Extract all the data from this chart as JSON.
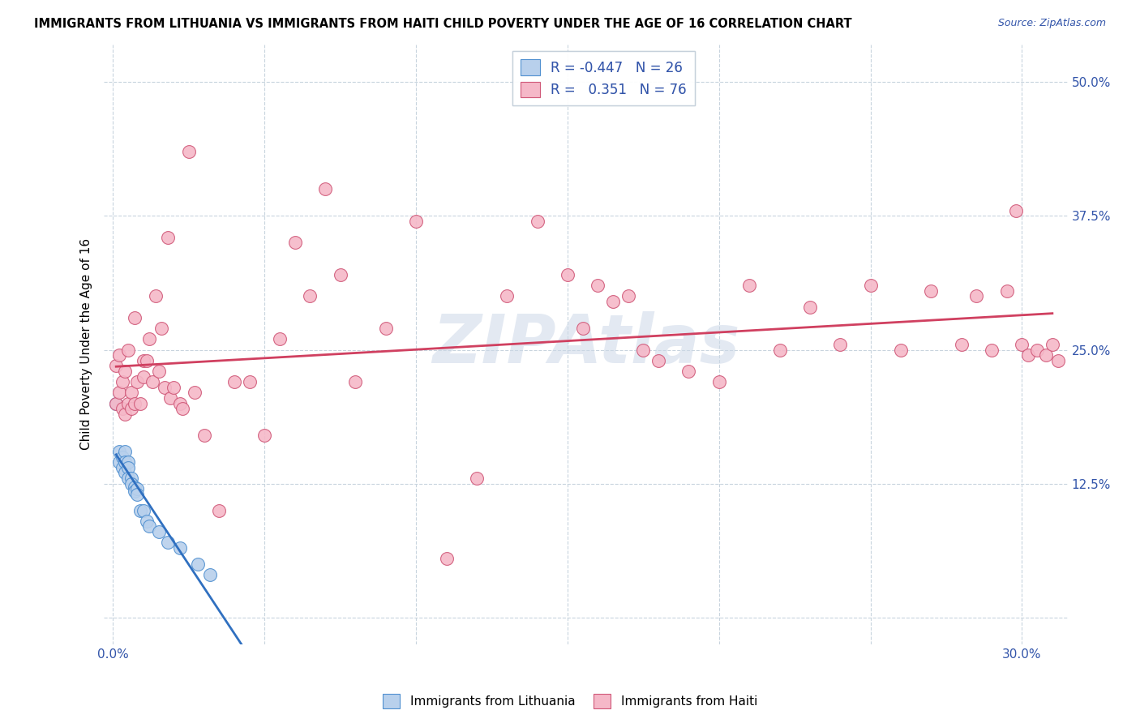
{
  "title": "IMMIGRANTS FROM LITHUANIA VS IMMIGRANTS FROM HAITI CHILD POVERTY UNDER THE AGE OF 16 CORRELATION CHART",
  "source": "Source: ZipAtlas.com",
  "ylabel": "Child Poverty Under the Age of 16",
  "xlim": [
    -0.003,
    0.315
  ],
  "ylim": [
    -0.025,
    0.535
  ],
  "xticks": [
    0.0,
    0.05,
    0.1,
    0.15,
    0.2,
    0.25,
    0.3
  ],
  "yticks": [
    0.0,
    0.125,
    0.25,
    0.375,
    0.5
  ],
  "r_lithuania": -0.447,
  "n_lithuania": 26,
  "r_haiti": 0.351,
  "n_haiti": 76,
  "color_lithuania_face": "#b8d0ec",
  "color_lithuania_edge": "#5090d0",
  "color_haiti_face": "#f5b8c8",
  "color_haiti_edge": "#d05878",
  "line_color_lithuania": "#3070c0",
  "line_color_haiti": "#d04060",
  "watermark": "ZIPAtlas",
  "watermark_color": "#ccd8e8",
  "lithuania_x": [
    0.001,
    0.002,
    0.002,
    0.003,
    0.003,
    0.004,
    0.004,
    0.004,
    0.005,
    0.005,
    0.005,
    0.006,
    0.006,
    0.007,
    0.007,
    0.008,
    0.008,
    0.009,
    0.01,
    0.011,
    0.012,
    0.015,
    0.018,
    0.022,
    0.028,
    0.032
  ],
  "lithuania_y": [
    0.2,
    0.155,
    0.145,
    0.15,
    0.14,
    0.155,
    0.145,
    0.135,
    0.145,
    0.14,
    0.13,
    0.13,
    0.125,
    0.122,
    0.118,
    0.12,
    0.115,
    0.1,
    0.1,
    0.09,
    0.085,
    0.08,
    0.07,
    0.065,
    0.05,
    0.04
  ],
  "haiti_x": [
    0.001,
    0.001,
    0.002,
    0.002,
    0.003,
    0.003,
    0.004,
    0.004,
    0.005,
    0.005,
    0.006,
    0.006,
    0.007,
    0.007,
    0.008,
    0.009,
    0.01,
    0.01,
    0.011,
    0.012,
    0.013,
    0.014,
    0.015,
    0.016,
    0.017,
    0.018,
    0.019,
    0.02,
    0.022,
    0.023,
    0.025,
    0.027,
    0.03,
    0.035,
    0.04,
    0.045,
    0.05,
    0.055,
    0.06,
    0.065,
    0.07,
    0.075,
    0.08,
    0.09,
    0.1,
    0.11,
    0.12,
    0.13,
    0.14,
    0.15,
    0.155,
    0.16,
    0.165,
    0.17,
    0.175,
    0.18,
    0.19,
    0.2,
    0.21,
    0.22,
    0.23,
    0.24,
    0.25,
    0.26,
    0.27,
    0.28,
    0.285,
    0.29,
    0.295,
    0.298,
    0.3,
    0.302,
    0.305,
    0.308,
    0.31,
    0.312
  ],
  "haiti_y": [
    0.2,
    0.235,
    0.21,
    0.245,
    0.195,
    0.22,
    0.19,
    0.23,
    0.2,
    0.25,
    0.195,
    0.21,
    0.2,
    0.28,
    0.22,
    0.2,
    0.225,
    0.24,
    0.24,
    0.26,
    0.22,
    0.3,
    0.23,
    0.27,
    0.215,
    0.355,
    0.205,
    0.215,
    0.2,
    0.195,
    0.435,
    0.21,
    0.17,
    0.1,
    0.22,
    0.22,
    0.17,
    0.26,
    0.35,
    0.3,
    0.4,
    0.32,
    0.22,
    0.27,
    0.37,
    0.055,
    0.13,
    0.3,
    0.37,
    0.32,
    0.27,
    0.31,
    0.295,
    0.3,
    0.25,
    0.24,
    0.23,
    0.22,
    0.31,
    0.25,
    0.29,
    0.255,
    0.31,
    0.25,
    0.305,
    0.255,
    0.3,
    0.25,
    0.305,
    0.38,
    0.255,
    0.245,
    0.25,
    0.245,
    0.255,
    0.24
  ]
}
